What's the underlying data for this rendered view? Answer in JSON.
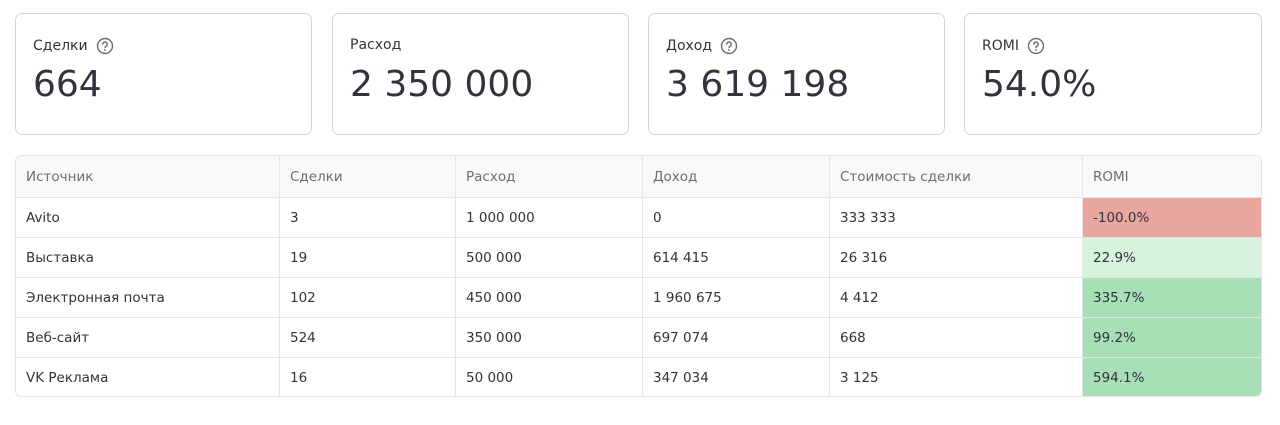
{
  "cards": [
    {
      "label": "Сделки",
      "value": "664"
    },
    {
      "label": "Расход",
      "value": "2 350 000"
    },
    {
      "label": "Доход",
      "value": "3 619 198"
    },
    {
      "label": "ROMI",
      "value": "54.0%"
    }
  ],
  "table": {
    "header": [
      "Источник",
      "Сделки",
      "Расход",
      "Доход",
      "Стоимость сделки",
      "ROMI"
    ],
    "rows": [
      [
        "Avito",
        "3",
        "1 000 000",
        "0",
        "333 333",
        "-100.0%"
      ],
      [
        "Выставка",
        "19",
        "500 000",
        "614 415",
        "26 316",
        "22.9%"
      ],
      [
        "Электронная почта",
        "102",
        "450 000",
        "1 960 675",
        "4 412",
        "335.7%"
      ],
      [
        "Веб-сайт",
        "524",
        "350 000",
        "697 074",
        "668",
        "99.2%"
      ],
      [
        "VK Реклама",
        "16",
        "50 000",
        "347 034",
        "3 125",
        "594.1%"
      ]
    ]
  }
}
